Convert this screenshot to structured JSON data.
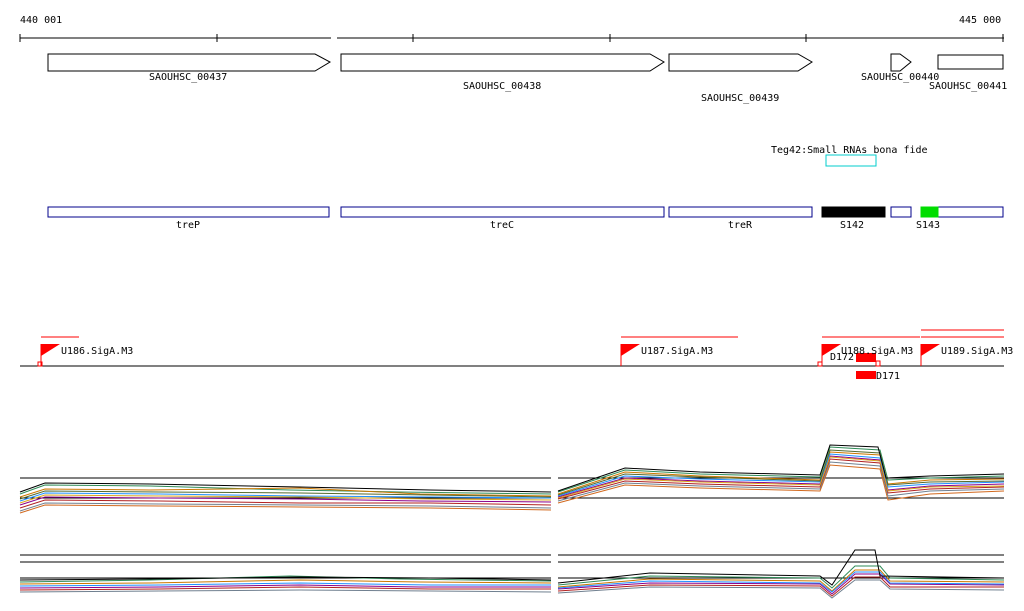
{
  "coordinates": {
    "start": "440 001",
    "end": "445 000"
  },
  "genes": [
    {
      "id": "SAOUHSC_00437",
      "strand": "+"
    },
    {
      "id": "SAOUHSC_00438",
      "strand": "+"
    },
    {
      "id": "SAOUHSC_00439",
      "strand": "+"
    },
    {
      "id": "SAOUHSC_00440",
      "strand": "+"
    },
    {
      "id": "SAOUHSC_00441",
      "strand": "+"
    }
  ],
  "srna_annotation": "Teg42:Small RNAs bona fide",
  "transcripts": [
    {
      "label": "treP",
      "fill": "none"
    },
    {
      "label": "treC",
      "fill": "none"
    },
    {
      "label": "treR",
      "fill": "none"
    },
    {
      "label": "S142",
      "fill": "black"
    },
    {
      "label": "",
      "fill": "none"
    },
    {
      "label": "S143",
      "fill": "green"
    }
  ],
  "promoters": [
    {
      "label": "U186.SigA.M3"
    },
    {
      "label": "U187.SigA.M3"
    },
    {
      "label": "U188.SigA.M3"
    },
    {
      "label": "U189.SigA.M3"
    }
  ],
  "terminators": [
    {
      "label": "D172"
    },
    {
      "label": "D171"
    }
  ],
  "colors": {
    "gene_outline": "#000000",
    "transcript_outline": "#00008b",
    "s142_fill": "#000000",
    "s143_fill": "#00dd00",
    "srna_box": "#00cccc",
    "regulatory_red": "#ff0000"
  }
}
